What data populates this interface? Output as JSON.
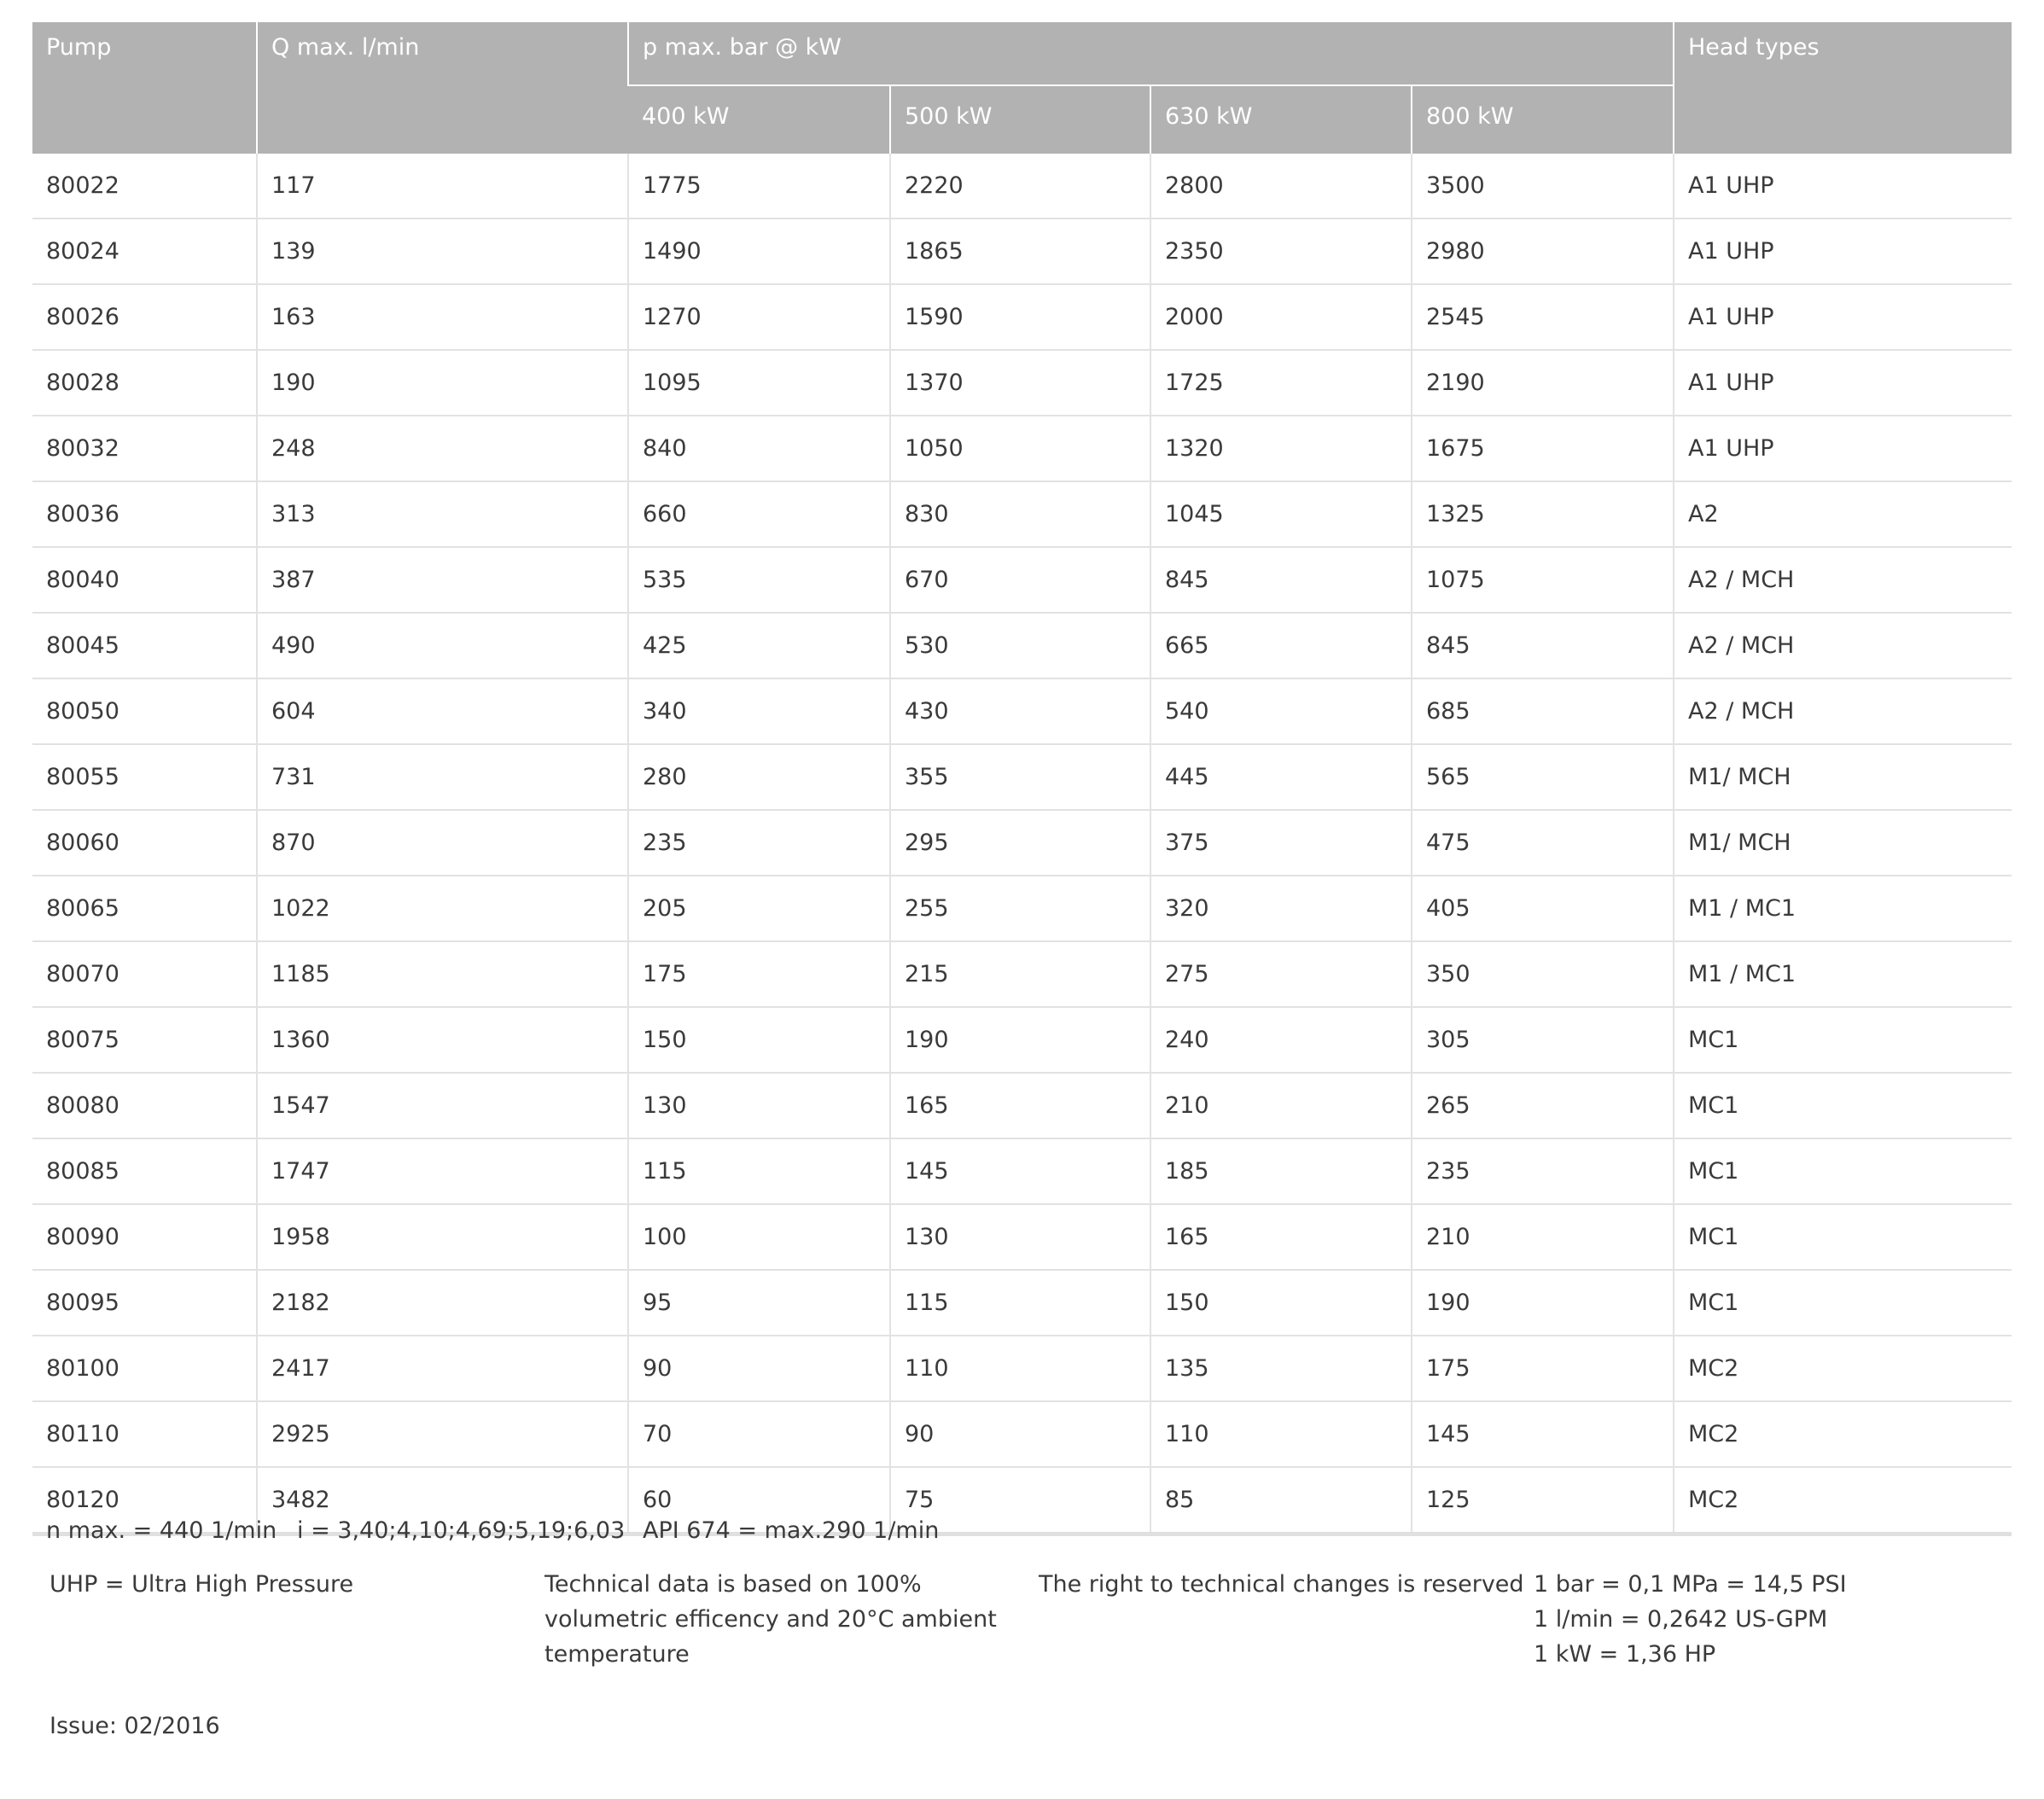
{
  "table": {
    "headers": {
      "pump": "Pump",
      "qmax": "Q max. l/min",
      "pmax_group": "p max. bar @ kW",
      "power": [
        "400 kW",
        "500 kW",
        "630 kW",
        "800 kW"
      ],
      "head_types": "Head types"
    },
    "rows": [
      [
        "80022",
        "117",
        "1775",
        "2220",
        "2800",
        "3500",
        "A1 UHP"
      ],
      [
        "80024",
        "139",
        "1490",
        "1865",
        "2350",
        "2980",
        "A1 UHP"
      ],
      [
        "80026",
        "163",
        "1270",
        "1590",
        "2000",
        "2545",
        "A1 UHP"
      ],
      [
        "80028",
        "190",
        "1095",
        "1370",
        "1725",
        "2190",
        "A1 UHP"
      ],
      [
        "80032",
        "248",
        "840",
        "1050",
        "1320",
        "1675",
        "A1 UHP"
      ],
      [
        "80036",
        "313",
        "660",
        "830",
        "1045",
        "1325",
        "A2"
      ],
      [
        "80040",
        "387",
        "535",
        "670",
        "845",
        "1075",
        "A2 / MCH"
      ],
      [
        "80045",
        "490",
        "425",
        "530",
        "665",
        "845",
        "A2 / MCH"
      ],
      [
        "80050",
        "604",
        "340",
        "430",
        "540",
        "685",
        "A2 / MCH"
      ],
      [
        "80055",
        "731",
        "280",
        "355",
        "445",
        "565",
        "M1/ MCH"
      ],
      [
        "80060",
        "870",
        "235",
        "295",
        "375",
        "475",
        "M1/ MCH"
      ],
      [
        "80065",
        "1022",
        "205",
        "255",
        "320",
        "405",
        "M1 / MC1"
      ],
      [
        "80070",
        "1185",
        "175",
        "215",
        "275",
        "350",
        "M1 / MC1"
      ],
      [
        "80075",
        "1360",
        "150",
        "190",
        "240",
        "305",
        "MC1"
      ],
      [
        "80080",
        "1547",
        "130",
        "165",
        "210",
        "265",
        "MC1"
      ],
      [
        "80085",
        "1747",
        "115",
        "145",
        "185",
        "235",
        "MC1"
      ],
      [
        "80090",
        "1958",
        "100",
        "130",
        "165",
        "210",
        "MC1"
      ],
      [
        "80095",
        "2182",
        "95",
        "115",
        "150",
        "190",
        "MC1"
      ],
      [
        "80100",
        "2417",
        "90",
        "110",
        "135",
        "175",
        "MC2"
      ],
      [
        "80110",
        "2925",
        "70",
        "90",
        "110",
        "145",
        "MC2"
      ],
      [
        "80120",
        "3482",
        "60",
        "75",
        "85",
        "125",
        "MC2"
      ]
    ]
  },
  "notes": {
    "nmax": "n max. = 440 1/min",
    "ratio": "i = 3,40;4,10;4,69;5,19;6,03",
    "api": "API 674 = max.290 1/min",
    "uhp": "UHP = Ultra High Pressure",
    "technical": [
      "Technical data is based on 100%",
      "volumetric efficency and 20°C ambient",
      "temperature"
    ],
    "rights": "The right to technical changes is reserved",
    "conversions": [
      "1 bar = 0,1 MPa = 14,5 PSI",
      "1 l/min = 0,2642 US-GPM",
      "1 kW = 1,36 HP"
    ],
    "issue": "Issue: 02/2016"
  }
}
